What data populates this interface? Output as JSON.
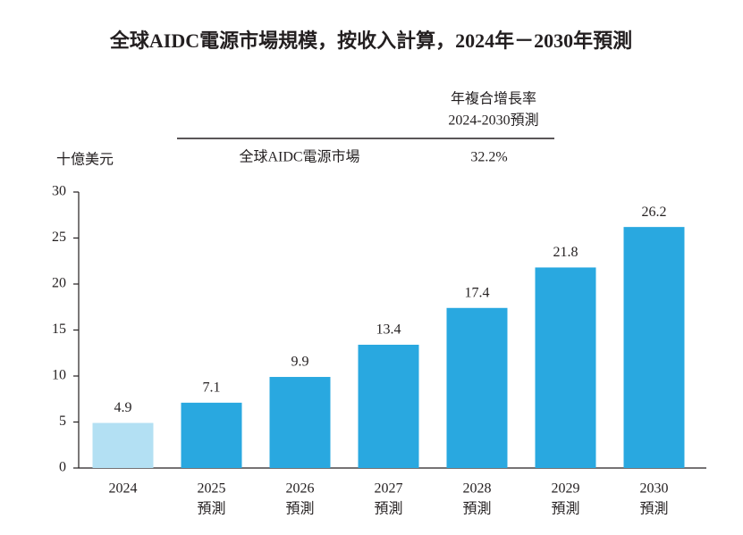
{
  "chart_data": {
    "type": "bar",
    "title": "全球AIDC電源市場規模，按收入計算，2024年－2030年預測",
    "y_label": "十億美元",
    "categories": [
      [
        "2024"
      ],
      [
        "2025",
        "預測"
      ],
      [
        "2026",
        "預測"
      ],
      [
        "2027",
        "預測"
      ],
      [
        "2028",
        "預測"
      ],
      [
        "2029",
        "預測"
      ],
      [
        "2030",
        "預測"
      ]
    ],
    "values": [
      4.9,
      7.1,
      9.9,
      13.4,
      17.4,
      21.8,
      26.2
    ],
    "colors": [
      "#b3e0f3",
      "#29a8e0",
      "#29a8e0",
      "#29a8e0",
      "#29a8e0",
      "#29a8e0",
      "#29a8e0"
    ],
    "ylim": [
      0,
      30
    ],
    "yticks": [
      0,
      5,
      10,
      15,
      20,
      25,
      30
    ],
    "cagr_table": {
      "header": [
        "年複合增長率",
        "2024-2030預測"
      ],
      "rows": [
        [
          "全球AIDC電源市場",
          "32.2%"
        ]
      ]
    }
  }
}
